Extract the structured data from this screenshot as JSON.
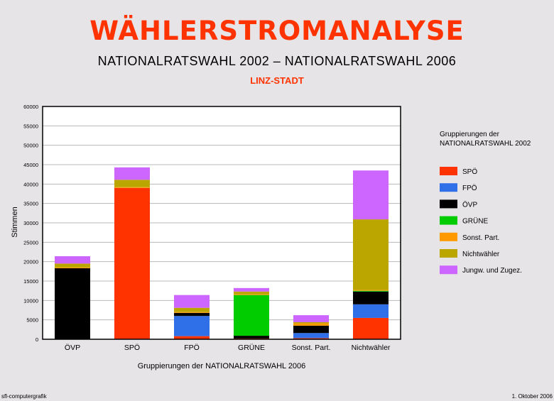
{
  "header": {
    "title": "WÄHLERSTROMANALYSE",
    "subtitle": "NATIONALRATSWAHL  2002  –  NATIONALRATSWAHL  2006",
    "region": "LINZ-STADT"
  },
  "legend": {
    "title_line1": "Gruppierungen der",
    "title_line2": "NATIONALRATSWAHL  2002",
    "placement": "right"
  },
  "footer": {
    "left": "sfl-computergrafik",
    "right": "1. Oktober 2006"
  },
  "chart_data": {
    "type": "bar",
    "stacked": true,
    "xlabel": "Gruppierungen der NATIONALRATSWAHL 2006",
    "ylabel": "Stimmen",
    "ylim": [
      0,
      60000
    ],
    "yticks": [
      0,
      5000,
      10000,
      15000,
      20000,
      25000,
      30000,
      35000,
      40000,
      45000,
      50000,
      55000,
      60000
    ],
    "grid": true,
    "categories": [
      "ÖVP",
      "SPÖ",
      "FPÖ",
      "GRÜNE",
      "Sonst. Part.",
      "Nichtwähler"
    ],
    "series": [
      {
        "name": "SPÖ",
        "color": "#ff3300",
        "values": [
          0,
          39000,
          800,
          200,
          300,
          5500
        ]
      },
      {
        "name": "FPÖ",
        "color": "#2f6fe8",
        "values": [
          0,
          0,
          5200,
          0,
          1300,
          3500
        ]
      },
      {
        "name": "ÖVP",
        "color": "#000000",
        "values": [
          18300,
          0,
          800,
          700,
          1900,
          3300
        ]
      },
      {
        "name": "GRÜNE",
        "color": "#00cc00",
        "values": [
          0,
          0,
          0,
          10500,
          0,
          200
        ]
      },
      {
        "name": "Sonst. Part.",
        "color": "#ff9900",
        "values": [
          200,
          200,
          200,
          200,
          600,
          200
        ]
      },
      {
        "name": "Nichtwähler",
        "color": "#bba600",
        "values": [
          1000,
          1900,
          1100,
          700,
          300,
          18200
        ]
      },
      {
        "name": "Jungw. und  Zugez.",
        "color": "#cc66ff",
        "values": [
          1900,
          3200,
          3300,
          900,
          1800,
          12600
        ]
      }
    ]
  }
}
